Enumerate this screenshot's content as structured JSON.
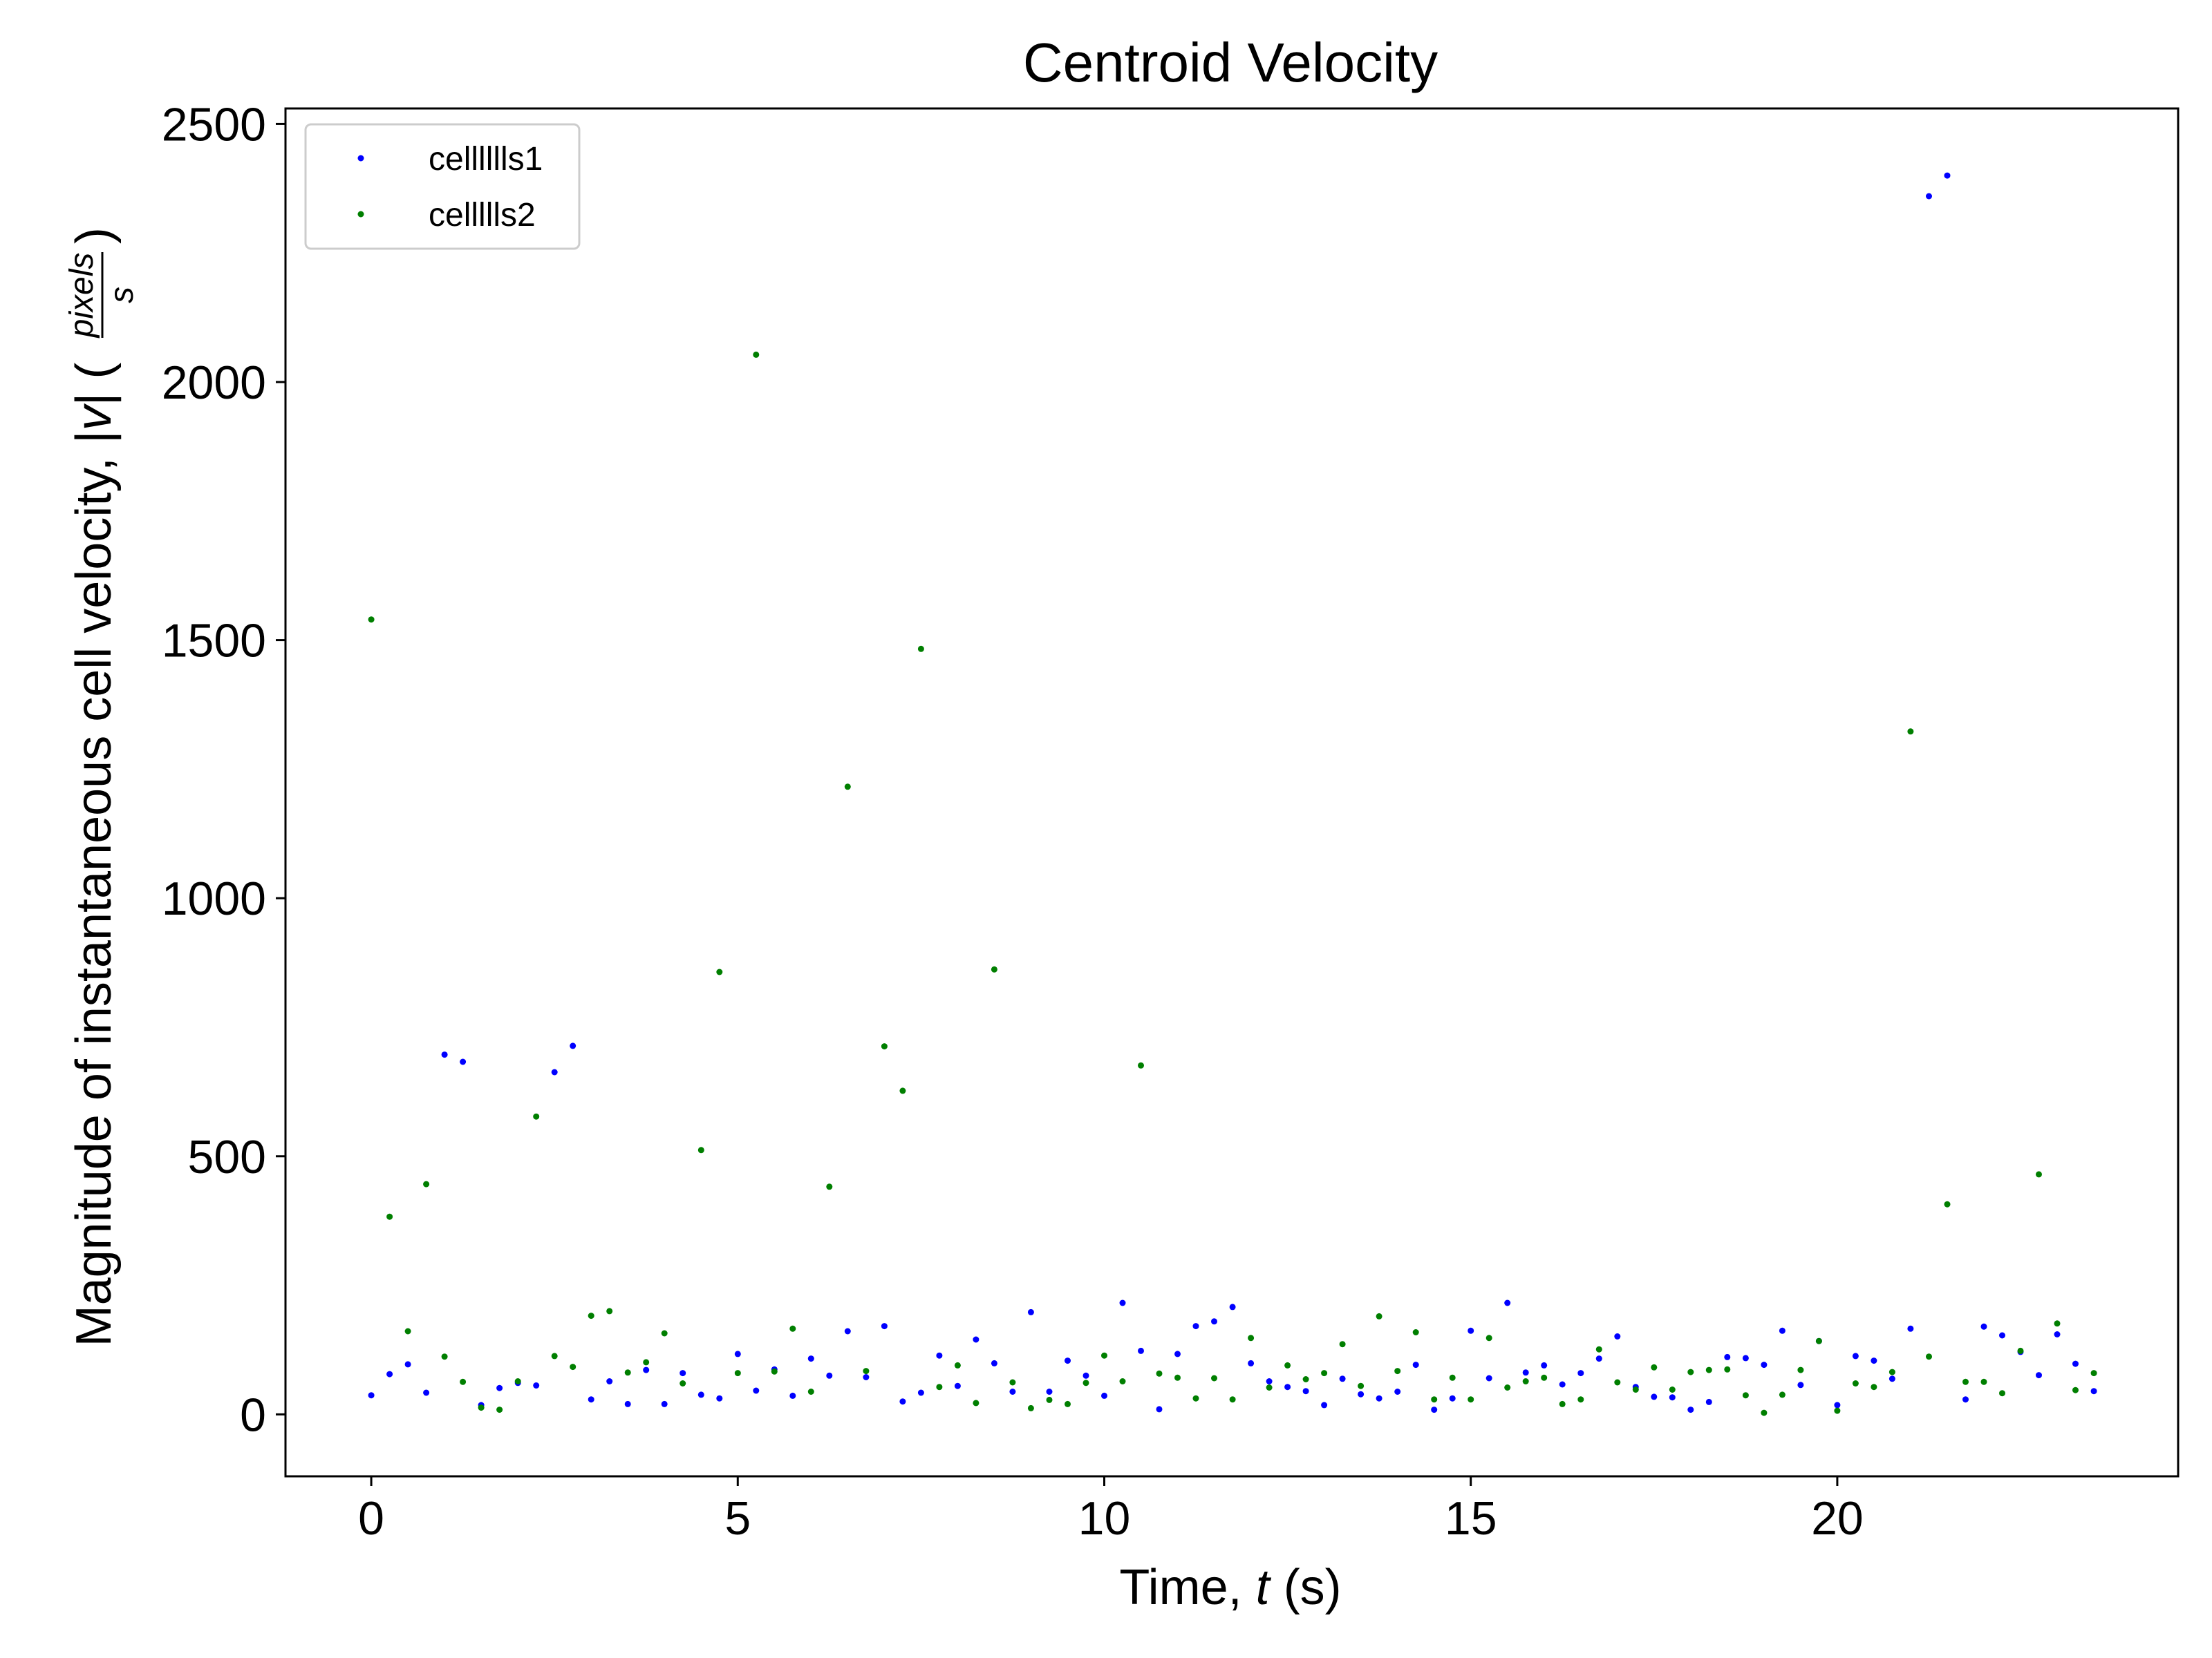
{
  "chart_data": {
    "type": "scatter",
    "title": "Centroid Velocity",
    "xlabel": {
      "prefix": "Time, ",
      "var": "t",
      "suffix": " (s)"
    },
    "ylabel": {
      "prefix": "Magnitude of instantaneous cell velocity, |",
      "var": "v",
      "mid": "| (",
      "num": "pixels",
      "den": "s",
      "suffix": ")"
    },
    "xlim": [
      -1.17,
      24.65
    ],
    "ylim": [
      -120,
      2530
    ],
    "xticks": [
      0,
      5,
      10,
      15,
      20
    ],
    "yticks": [
      0,
      500,
      1000,
      1500,
      2000,
      2500
    ],
    "grid": false,
    "legend_position": "top-left",
    "series": [
      {
        "name": "celllllls1",
        "color": "#0000ff",
        "points": [
          [
            0,
            37
          ],
          [
            0.25,
            78
          ],
          [
            0.5,
            97
          ],
          [
            0.75,
            42
          ],
          [
            1.0,
            697
          ],
          [
            1.25,
            683
          ],
          [
            1.5,
            18
          ],
          [
            1.75,
            51
          ],
          [
            2.0,
            61
          ],
          [
            2.25,
            56
          ],
          [
            2.5,
            663
          ],
          [
            2.75,
            714
          ],
          [
            3.0,
            29
          ],
          [
            3.25,
            64
          ],
          [
            3.5,
            20
          ],
          [
            3.75,
            86
          ],
          [
            4.0,
            20
          ],
          [
            4.25,
            80
          ],
          [
            4.5,
            38
          ],
          [
            4.75,
            31
          ],
          [
            5.0,
            117
          ],
          [
            5.25,
            46
          ],
          [
            5.5,
            87
          ],
          [
            5.75,
            36
          ],
          [
            6.0,
            108
          ],
          [
            6.25,
            75
          ],
          [
            6.5,
            161
          ],
          [
            6.75,
            72
          ],
          [
            7.0,
            171
          ],
          [
            7.25,
            25
          ],
          [
            7.5,
            42
          ],
          [
            7.75,
            114
          ],
          [
            8.0,
            55
          ],
          [
            8.25,
            145
          ],
          [
            8.5,
            99
          ],
          [
            8.75,
            44
          ],
          [
            9.0,
            198
          ],
          [
            9.25,
            44
          ],
          [
            9.5,
            104
          ],
          [
            9.75,
            75
          ],
          [
            10.0,
            36
          ],
          [
            10.25,
            216
          ],
          [
            10.5,
            123
          ],
          [
            10.75,
            10
          ],
          [
            11.0,
            117
          ],
          [
            11.25,
            171
          ],
          [
            11.5,
            180
          ],
          [
            11.75,
            208
          ],
          [
            12.0,
            99
          ],
          [
            12.25,
            64
          ],
          [
            12.5,
            53
          ],
          [
            12.75,
            45
          ],
          [
            13.0,
            18
          ],
          [
            13.25,
            69
          ],
          [
            13.5,
            39
          ],
          [
            13.75,
            31
          ],
          [
            14.0,
            44
          ],
          [
            14.25,
            96
          ],
          [
            14.5,
            9
          ],
          [
            14.75,
            31
          ],
          [
            15.0,
            162
          ],
          [
            15.25,
            70
          ],
          [
            15.5,
            216
          ],
          [
            15.75,
            81
          ],
          [
            16.0,
            95
          ],
          [
            16.25,
            58
          ],
          [
            16.5,
            80
          ],
          [
            16.75,
            108
          ],
          [
            17.0,
            151
          ],
          [
            17.25,
            53
          ],
          [
            17.5,
            34
          ],
          [
            17.75,
            33
          ],
          [
            18.0,
            9
          ],
          [
            18.25,
            24
          ],
          [
            18.5,
            111
          ],
          [
            18.75,
            109
          ],
          [
            19.0,
            96
          ],
          [
            19.25,
            162
          ],
          [
            19.5,
            57
          ],
          [
            19.75,
            142
          ],
          [
            20.0,
            18
          ],
          [
            20.25,
            113
          ],
          [
            20.5,
            104
          ],
          [
            20.75,
            69
          ],
          [
            21.0,
            166
          ],
          [
            21.25,
            2360
          ],
          [
            21.5,
            2400
          ],
          [
            21.75,
            29
          ],
          [
            22.0,
            170
          ],
          [
            22.25,
            153
          ],
          [
            22.5,
            121
          ],
          [
            22.75,
            76
          ],
          [
            23.0,
            155
          ],
          [
            23.25,
            98
          ],
          [
            23.5,
            45
          ]
        ]
      },
      {
        "name": "cellllls2",
        "color": "#007f00",
        "points": [
          [
            0,
            1540
          ],
          [
            0.25,
            383
          ],
          [
            0.5,
            161
          ],
          [
            0.75,
            446
          ],
          [
            1.0,
            112
          ],
          [
            1.25,
            63
          ],
          [
            1.5,
            13
          ],
          [
            1.75,
            9
          ],
          [
            2.0,
            64
          ],
          [
            2.25,
            577
          ],
          [
            2.5,
            113
          ],
          [
            2.75,
            92
          ],
          [
            3.0,
            191
          ],
          [
            3.25,
            200
          ],
          [
            3.5,
            81
          ],
          [
            3.75,
            101
          ],
          [
            4.0,
            157
          ],
          [
            4.25,
            60
          ],
          [
            4.5,
            512
          ],
          [
            4.75,
            857
          ],
          [
            5.0,
            80
          ],
          [
            5.25,
            2053
          ],
          [
            5.5,
            83
          ],
          [
            5.75,
            166
          ],
          [
            6.0,
            44
          ],
          [
            6.25,
            441
          ],
          [
            6.5,
            1216
          ],
          [
            6.75,
            84
          ],
          [
            7.0,
            713
          ],
          [
            7.25,
            627
          ],
          [
            7.5,
            1483
          ],
          [
            7.75,
            53
          ],
          [
            8.0,
            95
          ],
          [
            8.25,
            22
          ],
          [
            8.5,
            862
          ],
          [
            8.75,
            62
          ],
          [
            9.0,
            12
          ],
          [
            9.25,
            28
          ],
          [
            9.5,
            20
          ],
          [
            9.75,
            61
          ],
          [
            10.0,
            114
          ],
          [
            10.25,
            64
          ],
          [
            10.5,
            676
          ],
          [
            10.75,
            79
          ],
          [
            11.0,
            71
          ],
          [
            11.25,
            31
          ],
          [
            11.5,
            70
          ],
          [
            11.75,
            29
          ],
          [
            12.0,
            148
          ],
          [
            12.25,
            52
          ],
          [
            12.5,
            95
          ],
          [
            12.75,
            68
          ],
          [
            13.0,
            80
          ],
          [
            13.25,
            136
          ],
          [
            13.5,
            55
          ],
          [
            13.75,
            190
          ],
          [
            14.0,
            84
          ],
          [
            14.25,
            159
          ],
          [
            14.5,
            29
          ],
          [
            14.75,
            71
          ],
          [
            15.0,
            29
          ],
          [
            15.25,
            148
          ],
          [
            15.5,
            52
          ],
          [
            15.75,
            64
          ],
          [
            16.0,
            71
          ],
          [
            16.25,
            20
          ],
          [
            16.5,
            29
          ],
          [
            16.75,
            126
          ],
          [
            17.0,
            62
          ],
          [
            17.25,
            48
          ],
          [
            17.5,
            91
          ],
          [
            17.75,
            48
          ],
          [
            18.0,
            82
          ],
          [
            18.25,
            86
          ],
          [
            18.5,
            87
          ],
          [
            18.75,
            37
          ],
          [
            19.0,
            3
          ],
          [
            19.25,
            38
          ],
          [
            19.5,
            86
          ],
          [
            19.75,
            142
          ],
          [
            20.0,
            7
          ],
          [
            20.25,
            60
          ],
          [
            20.5,
            53
          ],
          [
            20.75,
            82
          ],
          [
            21.0,
            1323
          ],
          [
            21.25,
            112
          ],
          [
            21.5,
            407
          ],
          [
            21.75,
            63
          ],
          [
            22.0,
            63
          ],
          [
            22.25,
            41
          ],
          [
            22.5,
            123
          ],
          [
            22.75,
            465
          ],
          [
            23.0,
            176
          ],
          [
            23.25,
            47
          ],
          [
            23.5,
            80
          ]
        ]
      }
    ]
  }
}
